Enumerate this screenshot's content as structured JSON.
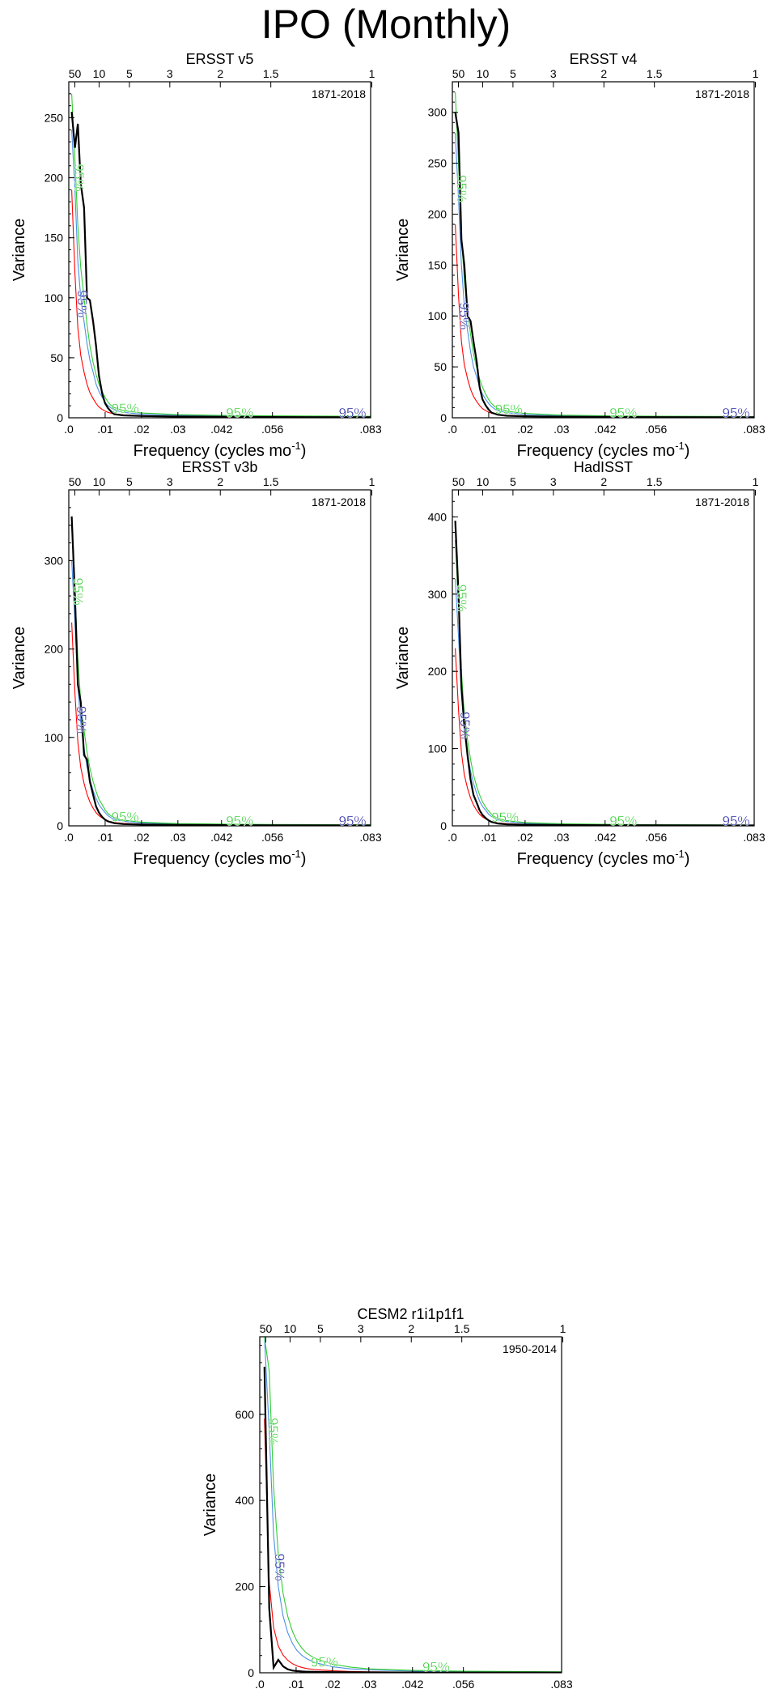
{
  "title": "IPO (Monthly)",
  "chart_data": [
    {
      "type": "line",
      "title": "ERSST v5",
      "period": "1871-2018",
      "xlabel": "Frequency (cycles mo",
      "xlabel_sup": "-1",
      "ylabel": "Variance",
      "xlim": [
        0,
        0.083
      ],
      "ylim": [
        0,
        280
      ],
      "x_ticks": [
        0,
        0.01,
        0.02,
        0.03,
        0.042,
        0.056,
        0.083
      ],
      "x_tick_labels": [
        ".0",
        ".01",
        ".02",
        ".03",
        ".042",
        ".056",
        ".083"
      ],
      "y_ticks": [
        0,
        50,
        100,
        150,
        200,
        250
      ],
      "y_tick_labels": [
        "0",
        "50",
        "100",
        "150",
        "200",
        "250"
      ],
      "top_ticks": [
        50,
        10,
        5,
        3,
        2,
        1.5,
        1
      ],
      "top_tick_labels": [
        "50",
        "10",
        "5",
        "3",
        "2",
        "1.5",
        "1"
      ],
      "x": [
        0.0008,
        0.0017,
        0.0025,
        0.0033,
        0.0042,
        0.005,
        0.0058,
        0.0067,
        0.0075,
        0.0083,
        0.0092,
        0.01,
        0.0108,
        0.0117,
        0.0125,
        0.015,
        0.02,
        0.03,
        0.042,
        0.056,
        0.083
      ],
      "series": [
        {
          "values": [
            255,
            225,
            245,
            195,
            175,
            100,
            98,
            80,
            60,
            35,
            20,
            12,
            8,
            5,
            3,
            2,
            1.5,
            1,
            0.8,
            0.6,
            0.5
          ],
          "color": "#000000"
        },
        {
          "values": [
            190,
            120,
            75,
            52,
            38,
            28,
            21,
            16,
            12,
            9,
            7,
            5.5,
            4.5,
            3.8,
            3.2,
            2.4,
            1.6,
            1,
            0.8,
            0.6,
            0.5
          ],
          "color": "#ff0000"
        },
        {
          "values": [
            240,
            190,
            130,
            100,
            80,
            62,
            48,
            38,
            28,
            22,
            17,
            13,
            10,
            8,
            6.5,
            4.5,
            3,
            2,
            1.6,
            1.3,
            1
          ],
          "color": "#4d8fe6"
        },
        {
          "values": [
            270,
            215,
            160,
            125,
            100,
            78,
            60,
            46,
            36,
            28,
            22,
            17,
            13,
            10,
            8.5,
            6,
            4,
            2.6,
            2,
            1.6,
            1.2
          ],
          "color": "#32cd32"
        }
      ],
      "annotations": [
        {
          "text": "95%",
          "x": 0.0016,
          "y": 200,
          "rotate": 90,
          "color": "#32cd32"
        },
        {
          "text": "95%",
          "x": 0.0024,
          "y": 95,
          "rotate": 90,
          "color": "#1c1c9c"
        },
        {
          "text": "95%",
          "x": 0.0155,
          "y": 4,
          "rotate": 0,
          "color": "#32cd32"
        },
        {
          "text": "95%",
          "x": 0.047,
          "y": 0.5,
          "rotate": 0,
          "color": "#32cd32"
        },
        {
          "text": "95%",
          "x": 0.078,
          "y": 0.5,
          "rotate": 0,
          "color": "#1c1c9c"
        }
      ]
    },
    {
      "type": "line",
      "title": "ERSST v4",
      "period": "1871-2018",
      "xlabel": "Frequency (cycles mo",
      "xlabel_sup": "-1",
      "ylabel": "Variance",
      "xlim": [
        0,
        0.083
      ],
      "ylim": [
        0,
        330
      ],
      "x_ticks": [
        0,
        0.01,
        0.02,
        0.03,
        0.042,
        0.056,
        0.083
      ],
      "x_tick_labels": [
        ".0",
        ".01",
        ".02",
        ".03",
        ".042",
        ".056",
        ".083"
      ],
      "y_ticks": [
        0,
        50,
        100,
        150,
        200,
        250,
        300
      ],
      "y_tick_labels": [
        "0",
        "50",
        "100",
        "150",
        "200",
        "250",
        "300"
      ],
      "top_ticks": [
        50,
        10,
        5,
        3,
        2,
        1.5,
        1
      ],
      "top_tick_labels": [
        "50",
        "10",
        "5",
        "3",
        "2",
        "1.5",
        "1"
      ],
      "x": [
        0.0008,
        0.0017,
        0.0025,
        0.0033,
        0.0042,
        0.005,
        0.0058,
        0.0067,
        0.0075,
        0.0083,
        0.0092,
        0.01,
        0.0108,
        0.0117,
        0.0125,
        0.015,
        0.02,
        0.03,
        0.042,
        0.056,
        0.083
      ],
      "series": [
        {
          "values": [
            300,
            280,
            175,
            150,
            100,
            95,
            75,
            55,
            30,
            18,
            12,
            8,
            5,
            4,
            3,
            2,
            1.5,
            1,
            0.8,
            0.6,
            0.5
          ],
          "color": "#000000"
        },
        {
          "values": [
            190,
            120,
            75,
            52,
            38,
            28,
            21,
            16,
            12,
            9,
            7,
            5.5,
            4.5,
            3.8,
            3.2,
            2.4,
            1.6,
            1,
            0.8,
            0.6,
            0.5
          ],
          "color": "#ff0000"
        },
        {
          "values": [
            280,
            215,
            150,
            110,
            85,
            65,
            50,
            40,
            30,
            23,
            18,
            14,
            11,
            8.5,
            7,
            5,
            3.2,
            2,
            1.6,
            1.3,
            1
          ],
          "color": "#4d8fe6"
        },
        {
          "values": [
            320,
            250,
            180,
            135,
            105,
            82,
            63,
            49,
            38,
            30,
            23,
            18,
            14,
            11,
            9,
            6.5,
            4.2,
            2.6,
            2,
            1.6,
            1.2
          ],
          "color": "#32cd32"
        }
      ],
      "annotations": [
        {
          "text": "95%",
          "x": 0.0013,
          "y": 225,
          "rotate": 90,
          "color": "#32cd32"
        },
        {
          "text": "95%",
          "x": 0.002,
          "y": 100,
          "rotate": 90,
          "color": "#1c1c9c"
        },
        {
          "text": "95%",
          "x": 0.0155,
          "y": 4,
          "rotate": 0,
          "color": "#32cd32"
        },
        {
          "text": "95%",
          "x": 0.047,
          "y": 0.5,
          "rotate": 0,
          "color": "#32cd32"
        },
        {
          "text": "95%",
          "x": 0.078,
          "y": 0.5,
          "rotate": 0,
          "color": "#1c1c9c"
        }
      ]
    },
    {
      "type": "line",
      "title": "ERSST v3b",
      "period": "1871-2018",
      "xlabel": "Frequency (cycles mo",
      "xlabel_sup": "-1",
      "ylabel": "Variance",
      "xlim": [
        0,
        0.083
      ],
      "ylim": [
        0,
        380
      ],
      "x_ticks": [
        0,
        0.01,
        0.02,
        0.03,
        0.042,
        0.056,
        0.083
      ],
      "x_tick_labels": [
        ".0",
        ".01",
        ".02",
        ".03",
        ".042",
        ".056",
        ".083"
      ],
      "y_ticks": [
        0,
        100,
        200,
        300
      ],
      "y_tick_labels": [
        "0",
        "100",
        "200",
        "300"
      ],
      "top_ticks": [
        50,
        10,
        5,
        3,
        2,
        1.5,
        1
      ],
      "top_tick_labels": [
        "50",
        "10",
        "5",
        "3",
        "2",
        "1.5",
        "1"
      ],
      "x": [
        0.0008,
        0.0017,
        0.0025,
        0.0033,
        0.0042,
        0.005,
        0.0058,
        0.0067,
        0.0075,
        0.0083,
        0.0092,
        0.01,
        0.0108,
        0.0117,
        0.0125,
        0.015,
        0.02,
        0.03,
        0.042,
        0.056,
        0.083
      ],
      "series": [
        {
          "values": [
            350,
            260,
            160,
            140,
            80,
            75,
            50,
            35,
            22,
            15,
            10,
            7,
            5,
            4,
            3,
            2,
            1.5,
            1,
            0.8,
            0.6,
            0.5
          ],
          "color": "#000000"
        },
        {
          "values": [
            230,
            150,
            95,
            66,
            48,
            36,
            27,
            20,
            15,
            11.5,
            9,
            7,
            5.5,
            4.5,
            3.8,
            2.8,
            1.8,
            1.1,
            0.8,
            0.6,
            0.5
          ],
          "color": "#ff0000"
        },
        {
          "values": [
            300,
            230,
            160,
            115,
            88,
            67,
            52,
            40,
            31,
            24,
            19,
            15,
            11.5,
            9,
            7.5,
            5.2,
            3.3,
            2,
            1.6,
            1.3,
            1
          ],
          "color": "#4d8fe6"
        },
        {
          "values": [
            340,
            265,
            190,
            140,
            108,
            84,
            65,
            50,
            39,
            30,
            24,
            18,
            14,
            11,
            9,
            6.5,
            4.2,
            2.6,
            2,
            1.6,
            1.2
          ],
          "color": "#32cd32"
        }
      ],
      "annotations": [
        {
          "text": "95%",
          "x": 0.0013,
          "y": 265,
          "rotate": 90,
          "color": "#32cd32"
        },
        {
          "text": "95%",
          "x": 0.0022,
          "y": 120,
          "rotate": 90,
          "color": "#1c1c9c"
        },
        {
          "text": "95%",
          "x": 0.0155,
          "y": 5,
          "rotate": 0,
          "color": "#32cd32"
        },
        {
          "text": "95%",
          "x": 0.047,
          "y": 0.5,
          "rotate": 0,
          "color": "#32cd32"
        },
        {
          "text": "95%",
          "x": 0.078,
          "y": 0.5,
          "rotate": 0,
          "color": "#1c1c9c"
        }
      ]
    },
    {
      "type": "line",
      "title": "HadISST",
      "period": "1871-2018",
      "xlabel": "Frequency (cycles mo",
      "xlabel_sup": "-1",
      "ylabel": "Variance",
      "xlim": [
        0,
        0.083
      ],
      "ylim": [
        0,
        435
      ],
      "x_ticks": [
        0,
        0.01,
        0.02,
        0.03,
        0.042,
        0.056,
        0.083
      ],
      "x_tick_labels": [
        ".0",
        ".01",
        ".02",
        ".03",
        ".042",
        ".056",
        ".083"
      ],
      "y_ticks": [
        0,
        100,
        200,
        300,
        400
      ],
      "y_tick_labels": [
        "0",
        "100",
        "200",
        "300",
        "400"
      ],
      "top_ticks": [
        50,
        10,
        5,
        3,
        2,
        1.5,
        1
      ],
      "top_tick_labels": [
        "50",
        "10",
        "5",
        "3",
        "2",
        "1.5",
        "1"
      ],
      "x": [
        0.0008,
        0.0017,
        0.0025,
        0.0033,
        0.0042,
        0.005,
        0.0058,
        0.0067,
        0.0075,
        0.0083,
        0.0092,
        0.01,
        0.0108,
        0.0117,
        0.0125,
        0.015,
        0.02,
        0.03,
        0.042,
        0.056,
        0.083
      ],
      "series": [
        {
          "values": [
            395,
            300,
            180,
            130,
            90,
            60,
            40,
            30,
            20,
            14,
            10,
            7,
            5,
            4,
            3,
            2,
            1.5,
            1,
            0.8,
            0.6,
            0.5
          ],
          "color": "#000000"
        },
        {
          "values": [
            230,
            150,
            95,
            66,
            48,
            36,
            27,
            20,
            15,
            11.5,
            9,
            7,
            5.5,
            4.5,
            3.8,
            2.8,
            1.8,
            1.1,
            0.8,
            0.6,
            0.5
          ],
          "color": "#ff0000"
        },
        {
          "values": [
            320,
            245,
            170,
            122,
            93,
            71,
            55,
            42,
            32,
            25,
            20,
            15,
            12,
            9.5,
            7.8,
            5.4,
            3.4,
            2.1,
            1.6,
            1.3,
            1
          ],
          "color": "#4d8fe6"
        },
        {
          "values": [
            370,
            285,
            200,
            145,
            110,
            86,
            66,
            51,
            40,
            31,
            24,
            19,
            15,
            11.5,
            9.5,
            6.7,
            4.3,
            2.7,
            2,
            1.6,
            1.2
          ],
          "color": "#32cd32"
        }
      ],
      "annotations": [
        {
          "text": "95%",
          "x": 0.0013,
          "y": 295,
          "rotate": 90,
          "color": "#32cd32"
        },
        {
          "text": "95%",
          "x": 0.0022,
          "y": 130,
          "rotate": 90,
          "color": "#1c1c9c"
        },
        {
          "text": "95%",
          "x": 0.0145,
          "y": 5,
          "rotate": 0,
          "color": "#32cd32"
        },
        {
          "text": "95%",
          "x": 0.047,
          "y": 0.5,
          "rotate": 0,
          "color": "#32cd32"
        },
        {
          "text": "95%",
          "x": 0.078,
          "y": 0.5,
          "rotate": 0,
          "color": "#1c1c9c"
        }
      ]
    },
    {
      "type": "line",
      "title": "CESM2 r1i1p1f1",
      "period": "1950-2014",
      "xlabel": "Frequency (cycles mo",
      "xlabel_sup": "-1",
      "ylabel": "Variance",
      "xlim": [
        0,
        0.083
      ],
      "ylim": [
        0,
        780
      ],
      "x_ticks": [
        0,
        0.01,
        0.02,
        0.03,
        0.042,
        0.056,
        0.083
      ],
      "x_tick_labels": [
        ".0",
        ".01",
        ".02",
        ".03",
        ".042",
        ".056",
        ".083"
      ],
      "y_ticks": [
        0,
        200,
        400,
        600
      ],
      "y_tick_labels": [
        "0",
        "200",
        "400",
        "600"
      ],
      "top_ticks": [
        50,
        10,
        5,
        3,
        2,
        1.5,
        1
      ],
      "top_tick_labels": [
        "50",
        "10",
        "5",
        "3",
        "2",
        "1.5",
        "1"
      ],
      "x": [
        0.0013,
        0.0026,
        0.0038,
        0.0051,
        0.0064,
        0.0077,
        0.009,
        0.0102,
        0.0115,
        0.0128,
        0.015,
        0.02,
        0.025,
        0.03,
        0.042,
        0.056,
        0.083
      ],
      "series": [
        {
          "values": [
            710,
            150,
            12,
            30,
            15,
            8,
            5,
            4,
            3,
            2.5,
            2,
            1.5,
            1.2,
            1,
            0.8,
            0.6,
            0.5
          ],
          "color": "#000000"
        },
        {
          "values": [
            590,
            210,
            105,
            62,
            41,
            29,
            21,
            16,
            12.5,
            10,
            7.5,
            4.5,
            3,
            2.2,
            1.4,
            1,
            0.7
          ],
          "color": "#ff0000"
        },
        {
          "values": [
            780,
            560,
            320,
            200,
            132,
            93,
            68,
            52,
            41,
            33,
            24,
            14,
            9,
            6.5,
            4,
            2.6,
            1.6
          ],
          "color": "#4d8fe6"
        },
        {
          "values": [
            780,
            700,
            430,
            275,
            185,
            131,
            96,
            74,
            58,
            46,
            34,
            20,
            13,
            9,
            5.5,
            3.6,
            2.2
          ],
          "color": "#32cd32"
        }
      ],
      "annotations": [
        {
          "text": "95%",
          "x": 0.0024,
          "y": 560,
          "rotate": 90,
          "color": "#32cd32"
        },
        {
          "text": "95%",
          "x": 0.0042,
          "y": 245,
          "rotate": 90,
          "color": "#1c1c9c"
        },
        {
          "text": "95%",
          "x": 0.0178,
          "y": 14,
          "rotate": 0,
          "color": "#32cd32"
        },
        {
          "text": "95%",
          "x": 0.0485,
          "y": 3,
          "rotate": 0,
          "color": "#32cd32"
        }
      ]
    }
  ]
}
